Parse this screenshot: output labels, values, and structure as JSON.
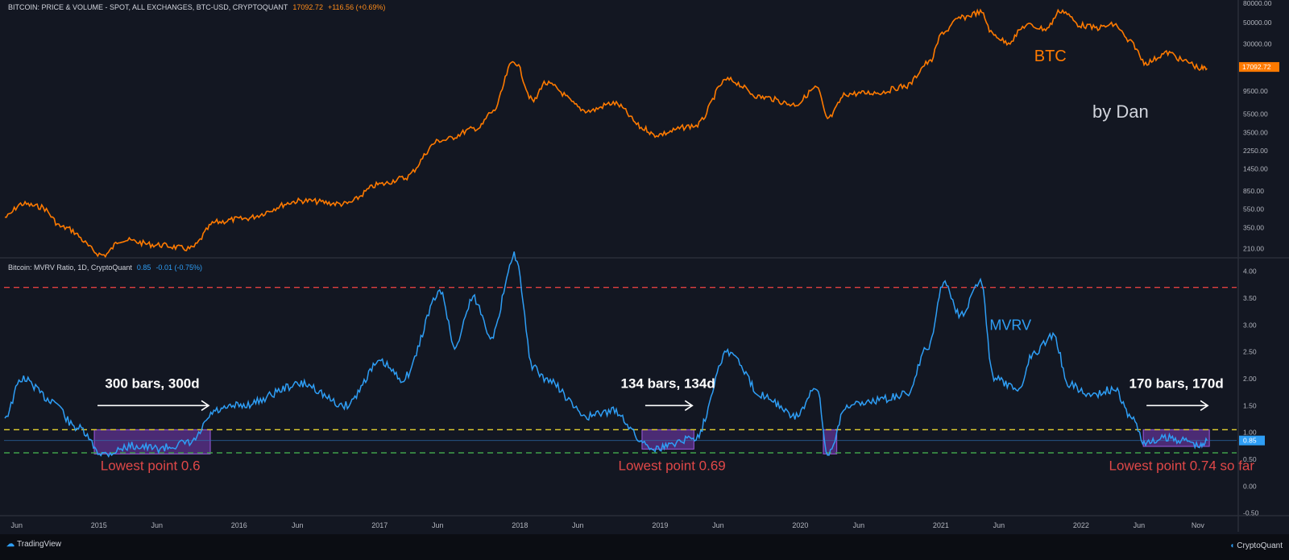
{
  "price_header": {
    "title": "BITCOIN: PRICE & VOLUME - SPOT, ALL EXCHANGES, BTC-USD, CRYPTOQUANT",
    "value": "17092.72",
    "change": "+116.56 (+0.69%)"
  },
  "mvrv_header": {
    "title": "Bitcoin: MVRV Ratio, 1D, CryptoQuant",
    "value": "0.85",
    "change": "-0.01 (-0.75%)"
  },
  "footer": {
    "left": "TradingView",
    "right": "CryptoQuant"
  },
  "colors": {
    "background": "#131722",
    "price": "#ff7a00",
    "mvrv": "#2e9ef5",
    "red_line": "#e04040",
    "yellow_line": "#e6d230",
    "green_line": "#3fa14a",
    "zone": "#7a3db8",
    "annotation_red": "#e04848"
  },
  "chart_data": [
    {
      "type": "line",
      "series": [
        {
          "name": "BTC",
          "x": [
            "2014-05-01",
            "2014-06-15",
            "2014-08-01",
            "2014-10-01",
            "2015-01-14",
            "2015-03-01",
            "2015-06-01",
            "2015-08-25",
            "2015-11-04",
            "2016-01-01",
            "2016-06-15",
            "2016-10-01",
            "2017-01-04",
            "2017-03-01",
            "2017-06-10",
            "2017-09-15",
            "2017-10-20",
            "2017-12-17",
            "2018-02-06",
            "2018-03-05",
            "2018-06-29",
            "2018-09-01",
            "2018-11-25",
            "2018-12-15",
            "2019-04-01",
            "2019-06-26",
            "2019-09-25",
            "2019-12-18",
            "2020-02-13",
            "2020-03-12",
            "2020-05-01",
            "2020-07-20",
            "2020-10-01",
            "2020-12-01",
            "2021-01-08",
            "2021-02-21",
            "2021-04-14",
            "2021-05-19",
            "2021-06-22",
            "2021-08-14",
            "2021-10-01",
            "2021-11-10",
            "2022-01-01",
            "2022-02-10",
            "2022-03-29",
            "2022-05-10",
            "2022-06-18",
            "2022-08-15",
            "2022-10-01",
            "2022-11-09",
            "2022-11-25"
          ],
          "values": [
            450,
            620,
            580,
            350,
            180,
            260,
            230,
            210,
            400,
            430,
            670,
            620,
            1000,
            1150,
            2900,
            3900,
            5700,
            19500,
            7500,
            11500,
            5900,
            7100,
            3800,
            3300,
            4100,
            12500,
            8200,
            6900,
            10300,
            4900,
            8900,
            9200,
            10700,
            19000,
            40000,
            56000,
            64000,
            37000,
            31000,
            47000,
            43000,
            67000,
            47000,
            44000,
            47500,
            31000,
            19000,
            24000,
            19500,
            16500,
            16500
          ]
        }
      ],
      "ylim": [
        175,
        80000
      ],
      "yscale": "log",
      "yticks": [
        "80000.00",
        "50000.00",
        "30000.00",
        "17092.72",
        "9500.00",
        "5500.00",
        "3500.00",
        "2250.00",
        "1450.00",
        "850.00",
        "550.00",
        "350.00",
        "210.00"
      ],
      "labels": [
        "BTC",
        "by Dan"
      ]
    },
    {
      "type": "line",
      "series": [
        {
          "name": "MVRV",
          "x": [
            "2014-05-01",
            "2014-06-15",
            "2014-09-01",
            "2014-11-01",
            "2015-01-14",
            "2015-04-01",
            "2015-06-01",
            "2015-08-25",
            "2015-11-04",
            "2016-01-01",
            "2016-06-15",
            "2016-10-01",
            "2017-01-04",
            "2017-03-01",
            "2017-06-10",
            "2017-07-15",
            "2017-09-01",
            "2017-10-20",
            "2017-12-17",
            "2018-02-06",
            "2018-03-05",
            "2018-06-29",
            "2018-09-01",
            "2018-11-25",
            "2018-12-15",
            "2019-04-01",
            "2019-06-26",
            "2019-09-25",
            "2019-12-18",
            "2020-02-13",
            "2020-03-12",
            "2020-05-01",
            "2020-07-20",
            "2020-10-01",
            "2020-12-01",
            "2021-01-08",
            "2021-02-21",
            "2021-04-14",
            "2021-05-19",
            "2021-07-20",
            "2021-09-01",
            "2021-10-20",
            "2021-12-01",
            "2022-01-22",
            "2022-03-29",
            "2022-05-10",
            "2022-06-18",
            "2022-08-15",
            "2022-10-01",
            "2022-11-09",
            "2022-11-25"
          ],
          "values": [
            1.3,
            2.0,
            1.6,
            1.1,
            0.6,
            0.75,
            0.7,
            0.8,
            1.4,
            1.5,
            1.9,
            1.5,
            2.3,
            2.0,
            3.6,
            2.6,
            3.5,
            2.8,
            4.3,
            2.2,
            2.0,
            1.3,
            1.4,
            0.8,
            0.7,
            0.9,
            2.5,
            1.7,
            1.3,
            1.8,
            0.6,
            1.5,
            1.6,
            1.7,
            2.6,
            3.8,
            3.2,
            3.8,
            2.0,
            1.8,
            2.5,
            2.8,
            1.9,
            1.7,
            1.8,
            1.3,
            0.8,
            0.9,
            0.85,
            0.74,
            0.85
          ]
        }
      ],
      "ylim": [
        -0.55,
        4.25
      ],
      "yticks": [
        "4.00",
        "3.50",
        "3.00",
        "2.50",
        "2.00",
        "1.50",
        "1.00",
        "0.85",
        "0.50",
        "0.00",
        "-0.50"
      ],
      "levels": [
        {
          "value": 3.7,
          "color": "#e04040"
        },
        {
          "value": 1.05,
          "color": "#e6d230"
        },
        {
          "value": 0.62,
          "color": "#3fa14a"
        }
      ],
      "zones": [
        {
          "start": "2014-12-20",
          "end": "2015-10-18",
          "low": 0.6,
          "high": 1.05
        },
        {
          "start": "2018-11-15",
          "end": "2019-03-30",
          "low": 0.69,
          "high": 1.05
        },
        {
          "start": "2020-03-01",
          "end": "2020-04-05",
          "low": 0.6,
          "high": 1.05
        },
        {
          "start": "2022-06-12",
          "end": "2022-12-01",
          "low": 0.74,
          "high": 1.05
        }
      ],
      "annotations": [
        {
          "text": "300 bars, 300d",
          "type": "count",
          "start": "2014-12-20",
          "end": "2015-10-18"
        },
        {
          "text": "Lowest point 0.6",
          "type": "low",
          "date": "2015-05-15"
        },
        {
          "text": "134 bars, 134d",
          "type": "count",
          "start": "2018-11-15",
          "end": "2019-03-30"
        },
        {
          "text": "Lowest point 0.69",
          "type": "low",
          "date": "2019-02-01"
        },
        {
          "text": "170 bars, 170d",
          "type": "count",
          "start": "2022-06-12",
          "end": "2022-12-01"
        },
        {
          "text": "Lowest point 0.74 so far",
          "type": "low",
          "date": "2022-09-20"
        }
      ],
      "labels": [
        "MVRV"
      ]
    }
  ],
  "x_axis": {
    "ticks": [
      {
        "label": "Jun",
        "date": "2014-06-01"
      },
      {
        "label": "2015",
        "date": "2015-01-01"
      },
      {
        "label": "Jun",
        "date": "2015-06-01"
      },
      {
        "label": "2016",
        "date": "2016-01-01"
      },
      {
        "label": "Jun",
        "date": "2016-06-01"
      },
      {
        "label": "2017",
        "date": "2017-01-01"
      },
      {
        "label": "Jun",
        "date": "2017-06-01"
      },
      {
        "label": "2018",
        "date": "2018-01-01"
      },
      {
        "label": "Jun",
        "date": "2018-06-01"
      },
      {
        "label": "2019",
        "date": "2019-01-01"
      },
      {
        "label": "Jun",
        "date": "2019-06-01"
      },
      {
        "label": "2020",
        "date": "2020-01-01"
      },
      {
        "label": "Jun",
        "date": "2020-06-01"
      },
      {
        "label": "2021",
        "date": "2021-01-01"
      },
      {
        "label": "Jun",
        "date": "2021-06-01"
      },
      {
        "label": "2022",
        "date": "2022-01-01"
      },
      {
        "label": "Jun",
        "date": "2022-06-01"
      },
      {
        "label": "Nov",
        "date": "2022-11-01"
      }
    ]
  }
}
